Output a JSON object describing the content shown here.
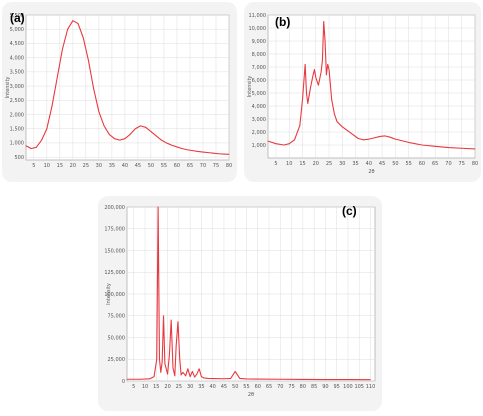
{
  "colors": {
    "series": "#e8393f",
    "grid": "#dedede",
    "plot_bg": "#ffffff",
    "panel_bg": "#f3f3f3",
    "axis": "#999999"
  },
  "chart_data": [
    {
      "panel": "(a)",
      "type": "line",
      "xlabel": "",
      "ylabel": "Intensity",
      "xlim": [
        2,
        80
      ],
      "ylim": [
        400,
        5500
      ],
      "x_ticks": [
        "5",
        "10",
        "15",
        "20",
        "25",
        "30",
        "35",
        "40",
        "45",
        "50",
        "55",
        "60",
        "65",
        "70",
        "75",
        "80"
      ],
      "y_ticks": [
        "500",
        "1,000",
        "1,500",
        "2,000",
        "2,500",
        "3,000",
        "3,500",
        "4,000",
        "4,500",
        "5,000",
        "5,500"
      ],
      "y_tick_values": [
        500,
        1000,
        1500,
        2000,
        2500,
        3000,
        3500,
        4000,
        4500,
        5000,
        5500
      ],
      "grid": true,
      "x": [
        2,
        4,
        6,
        8,
        10,
        12,
        14,
        16,
        18,
        20,
        22,
        24,
        26,
        28,
        30,
        32,
        34,
        36,
        38,
        40,
        42,
        44,
        46,
        48,
        50,
        52,
        54,
        56,
        58,
        60,
        62,
        64,
        66,
        68,
        70,
        72,
        74,
        76,
        78,
        80
      ],
      "y": [
        900,
        800,
        850,
        1100,
        1500,
        2300,
        3300,
        4300,
        5000,
        5300,
        5200,
        4700,
        3900,
        2900,
        2100,
        1600,
        1300,
        1150,
        1100,
        1150,
        1300,
        1500,
        1600,
        1550,
        1400,
        1250,
        1100,
        1000,
        920,
        860,
        800,
        760,
        730,
        700,
        680,
        660,
        640,
        620,
        610,
        600
      ]
    },
    {
      "panel": "(b)",
      "type": "line",
      "xlabel": "2θ",
      "ylabel": "Intensity",
      "xlim": [
        2,
        80
      ],
      "ylim": [
        0,
        11000
      ],
      "x_ticks": [
        "5",
        "10",
        "15",
        "20",
        "25",
        "30",
        "35",
        "40",
        "45",
        "50",
        "55",
        "60",
        "65",
        "70",
        "75",
        "80"
      ],
      "y_ticks": [
        "1,000",
        "2,000",
        "3,000",
        "4,000",
        "5,000",
        "6,000",
        "7,000",
        "8,000",
        "9,000",
        "10,000",
        "11,000"
      ],
      "y_tick_values": [
        1000,
        2000,
        3000,
        4000,
        5000,
        6000,
        7000,
        8000,
        9000,
        10000,
        11000
      ],
      "grid": true,
      "x": [
        2,
        5,
        8,
        10,
        12,
        14,
        15,
        16,
        16.5,
        17,
        18,
        19,
        19.5,
        20,
        21,
        22,
        22.5,
        23,
        23.5,
        24,
        24.5,
        25,
        26,
        27,
        28,
        30,
        32,
        34,
        36,
        38,
        40,
        42,
        44,
        46,
        48,
        50,
        55,
        60,
        65,
        70,
        75,
        80
      ],
      "y": [
        1300,
        1100,
        1000,
        1100,
        1400,
        2500,
        4500,
        7200,
        5000,
        4200,
        5400,
        6400,
        6800,
        6200,
        5600,
        6600,
        7500,
        10500,
        9000,
        6400,
        7200,
        6800,
        4500,
        3400,
        2800,
        2400,
        2100,
        1800,
        1500,
        1400,
        1450,
        1550,
        1650,
        1700,
        1600,
        1450,
        1200,
        1000,
        900,
        800,
        750,
        700
      ]
    },
    {
      "panel": "(c)",
      "type": "line",
      "xlabel": "2θ",
      "ylabel": "Intensity",
      "xlim": [
        2,
        112
      ],
      "ylim": [
        0,
        200000
      ],
      "x_ticks": [
        "5",
        "10",
        "15",
        "20",
        "25",
        "30",
        "35",
        "40",
        "45",
        "50",
        "55",
        "60",
        "65",
        "70",
        "75",
        "80",
        "85",
        "90",
        "95",
        "100",
        "105",
        "110"
      ],
      "y_ticks": [
        "0",
        "25,000",
        "50,000",
        "75,000",
        "100,000",
        "125,000",
        "150,000",
        "175,000",
        "200,000"
      ],
      "y_tick_values": [
        0,
        25000,
        50000,
        75000,
        100000,
        125000,
        150000,
        175000,
        200000
      ],
      "grid": true,
      "x": [
        2,
        8,
        12,
        14,
        15.2,
        15.8,
        16.4,
        17,
        17.6,
        18.2,
        18.8,
        20,
        20.8,
        21.6,
        22.4,
        23.2,
        23.8,
        24.6,
        25.4,
        26,
        26.8,
        28,
        29,
        30,
        31,
        32,
        33,
        34,
        35,
        36,
        38,
        40,
        45,
        48,
        50,
        52,
        55,
        60,
        70,
        80,
        90,
        100,
        110
      ],
      "y": [
        2000,
        2000,
        2500,
        5000,
        25000,
        200000,
        25000,
        10000,
        22000,
        75000,
        20000,
        8000,
        30000,
        70000,
        15000,
        6000,
        40000,
        68000,
        25000,
        7000,
        10000,
        6000,
        14000,
        5000,
        11000,
        4500,
        8000,
        14000,
        5000,
        3500,
        3000,
        2800,
        2600,
        3000,
        11000,
        3000,
        2400,
        2200,
        2000,
        1800,
        1700,
        1600,
        1500
      ]
    }
  ]
}
